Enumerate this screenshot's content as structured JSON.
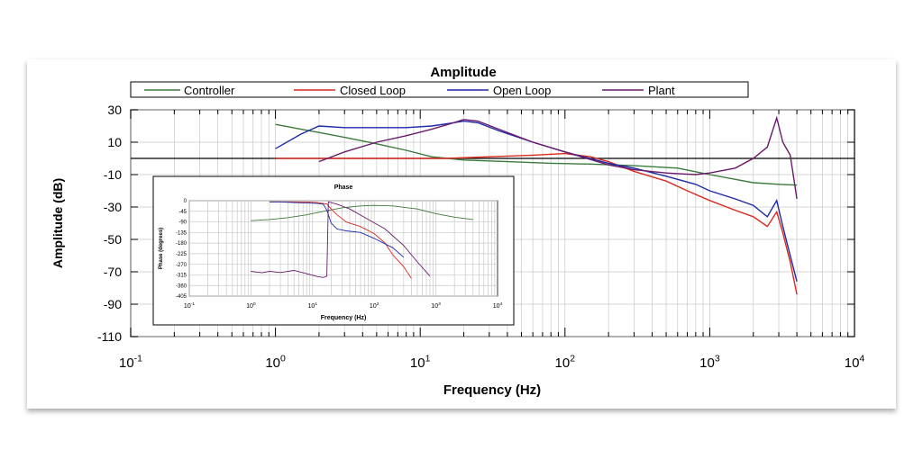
{
  "chart_data": [
    {
      "type": "line",
      "title": "Amplitude",
      "xlabel": "Frequency (Hz)",
      "ylabel": "Amplitude (dB)",
      "xscale": "log",
      "xlim": [
        0.1,
        10000
      ],
      "ylim": [
        -110,
        30
      ],
      "yticks": [
        30,
        10,
        -10,
        -30,
        -50,
        -70,
        -90,
        -110
      ],
      "xtick_bases": [
        "10",
        "10",
        "10",
        "10",
        "10",
        "10"
      ],
      "xtick_exponents": [
        "-1",
        "0",
        "1",
        "2",
        "3",
        "4"
      ],
      "grid": true,
      "legend": "top",
      "legend_entries": [
        "Controller",
        "Closed Loop",
        "Open Loop",
        "Plant"
      ],
      "reference_line_y": 0,
      "series": [
        {
          "name": "Controller",
          "color": "#3a7a3a",
          "x": [
            1,
            1.5,
            2,
            3,
            5,
            8,
            12,
            20,
            40,
            80,
            150,
            300,
            600,
            1000,
            2000,
            3000,
            4000
          ],
          "y": [
            21,
            18,
            16,
            13,
            9,
            5,
            1,
            -1,
            -2,
            -3,
            -3.5,
            -4.5,
            -6,
            -10,
            -15,
            -16,
            -16.5
          ]
        },
        {
          "name": "Closed Loop",
          "color": "#d92b1f",
          "x": [
            1,
            1.7,
            2,
            4,
            8,
            15,
            30,
            60,
            100,
            150,
            200,
            300,
            500,
            700,
            1000,
            1500,
            2000,
            2500,
            2900,
            3200,
            3600,
            4000
          ],
          "y": [
            0,
            0,
            0,
            0,
            0,
            0,
            1,
            2,
            3,
            1,
            -2,
            -8,
            -14,
            -20,
            -26,
            -32,
            -36,
            -42,
            -33,
            -46,
            -64,
            -84
          ]
        },
        {
          "name": "Open Loop",
          "color": "#1c2aa8",
          "x": [
            1,
            1.5,
            2,
            3,
            5,
            8,
            12,
            17,
            20,
            25,
            35,
            60,
            100,
            200,
            300,
            500,
            800,
            1000,
            1500,
            2000,
            2500,
            2900,
            3200,
            3600,
            4000
          ],
          "y": [
            6,
            15,
            20,
            19,
            19,
            19,
            20,
            22,
            23,
            22,
            17,
            10,
            4,
            -3,
            -6,
            -11,
            -16,
            -20,
            -25,
            -29,
            -36,
            -26,
            -42,
            -60,
            -76
          ]
        },
        {
          "name": "Plant",
          "color": "#6a1a6a",
          "x": [
            2,
            3,
            5,
            8,
            12,
            17,
            20,
            25,
            35,
            60,
            100,
            200,
            300,
            500,
            800,
            1000,
            1500,
            2000,
            2500,
            2900,
            3200,
            3600,
            4000
          ],
          "y": [
            -2,
            4,
            10,
            14,
            18,
            22,
            24,
            23,
            18,
            10,
            4,
            -4,
            -7,
            -9,
            -10,
            -9,
            -6,
            0,
            7,
            25,
            10,
            2,
            -25
          ]
        }
      ]
    },
    {
      "type": "line",
      "title": "Phase",
      "xlabel": "Frequency (Hz)",
      "ylabel": "Phase (degrees)",
      "xscale": "log",
      "xlim": [
        0.1,
        10000
      ],
      "ylim": [
        -405,
        0
      ],
      "yticks": [
        0,
        -45,
        -90,
        -135,
        -180,
        -225,
        -270,
        -315,
        -360,
        -405
      ],
      "xtick_bases": [
        "10",
        "10",
        "10",
        "10",
        "10",
        "10"
      ],
      "xtick_exponents": [
        "-1",
        "0",
        "1",
        "2",
        "3",
        "4"
      ],
      "grid": true,
      "series": [
        {
          "color": "#3a7a3a",
          "x": [
            1,
            2,
            4,
            8,
            15,
            30,
            60,
            100,
            200,
            500,
            1000,
            2000,
            4000
          ],
          "y": [
            -85,
            -80,
            -72,
            -60,
            -45,
            -30,
            -22,
            -20,
            -22,
            -35,
            -55,
            -70,
            -80
          ]
        },
        {
          "color": "#d92b1f",
          "x": [
            2,
            4,
            8,
            12,
            17,
            20,
            25,
            35,
            60,
            100,
            150,
            200,
            300,
            400
          ],
          "y": [
            -5,
            -5,
            -5,
            -8,
            -14,
            -35,
            -60,
            -90,
            -110,
            -140,
            -180,
            -230,
            -280,
            -330
          ]
        },
        {
          "color": "#1c2aa8",
          "x": [
            2,
            3,
            5,
            8,
            12,
            15,
            17,
            20,
            25,
            35,
            60,
            100,
            200,
            300
          ],
          "y": [
            -5,
            -5,
            -8,
            -10,
            -12,
            -15,
            -40,
            -95,
            -120,
            -128,
            -135,
            -160,
            -200,
            -240
          ]
        },
        {
          "color": "#6a1a6a",
          "x": [
            1,
            1.5,
            2,
            3,
            5,
            8,
            12,
            15,
            17,
            18,
            20,
            25,
            40,
            80,
            150,
            300,
            500,
            800
          ],
          "y": [
            -300,
            -306,
            -300,
            -305,
            -296,
            -310,
            -322,
            -326,
            -320,
            -5,
            -8,
            -15,
            -35,
            -80,
            -120,
            -190,
            -260,
            -320
          ]
        }
      ]
    }
  ]
}
